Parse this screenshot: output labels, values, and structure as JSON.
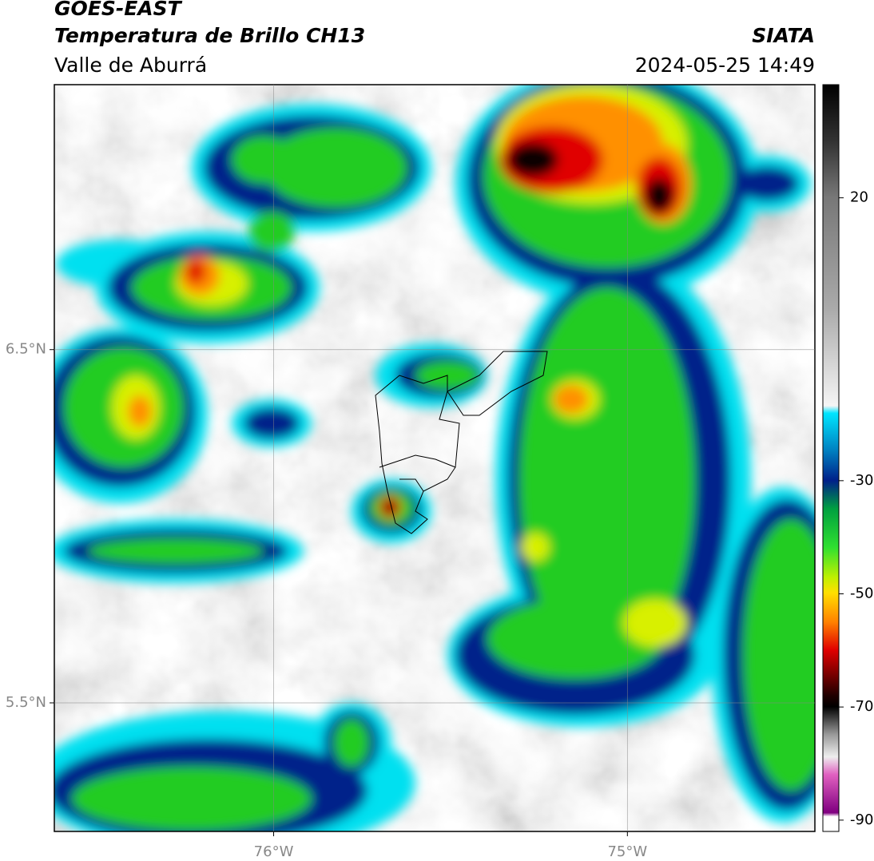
{
  "header": {
    "satellite": "GOES-EAST",
    "product": "Temperatura de Brillo CH13",
    "region": "Valle de Aburrá",
    "agency": "SIATA",
    "datetime": "2024-05-25 14:49"
  },
  "map": {
    "lonlim": [
      -76.62,
      -74.47
    ],
    "latlim": [
      5.136,
      7.25
    ],
    "lon_ticks": [
      {
        "value": -76,
        "label": "76°W"
      },
      {
        "value": -75,
        "label": "75°W"
      }
    ],
    "lat_ticks": [
      {
        "value": 6.5,
        "label": "6.5°N"
      },
      {
        "value": 5.5,
        "label": "5.5°N"
      }
    ]
  },
  "colorbar": {
    "clim": [
      -92,
      40
    ],
    "ticks": [
      20,
      -30,
      -50,
      -70,
      -90
    ]
  }
}
